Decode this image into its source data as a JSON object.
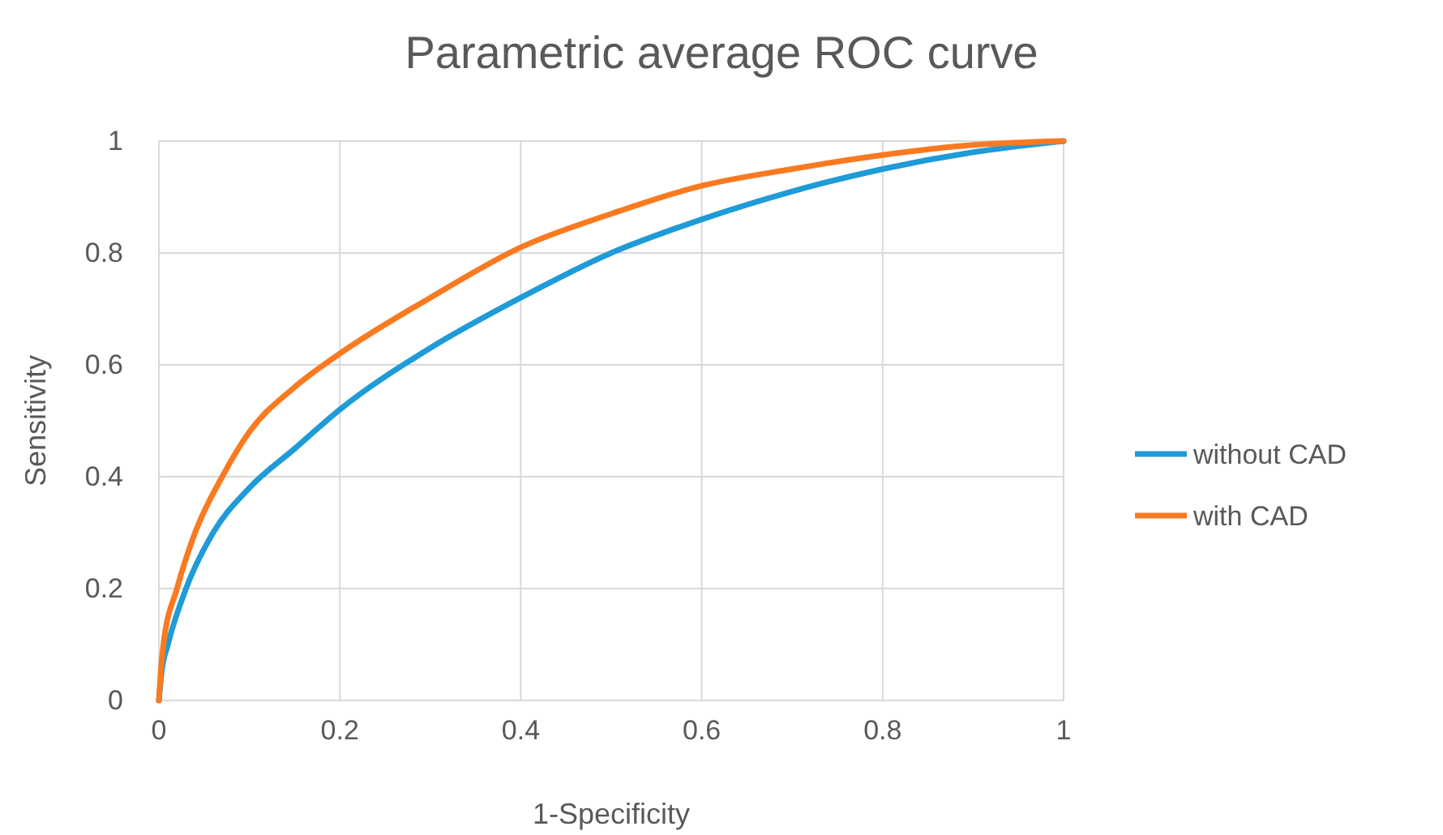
{
  "chart_data": {
    "type": "line",
    "title": "Parametric average ROC curve",
    "xlabel": "1-Specificity",
    "ylabel": "Sensitivity",
    "xlim": [
      0,
      1
    ],
    "xticks": [
      0,
      0.2,
      0.4,
      0.6,
      0.8,
      1
    ],
    "ylim": [
      0,
      1
    ],
    "yticks": [
      0,
      0.2,
      0.4,
      0.6,
      0.8,
      1
    ],
    "grid": true,
    "legend": "right",
    "marker": "none",
    "line_style": "solid",
    "series": [
      {
        "name": "without CAD",
        "color": "#1f9bd7",
        "x": [
          0,
          0.003,
          0.01,
          0.03,
          0.06,
          0.1,
          0.15,
          0.2,
          0.3,
          0.4,
          0.5,
          0.6,
          0.7,
          0.8,
          0.9,
          1
        ],
        "values": [
          0,
          0.05,
          0.1,
          0.2,
          0.3,
          0.38,
          0.45,
          0.52,
          0.63,
          0.72,
          0.8,
          0.86,
          0.91,
          0.95,
          0.98,
          1
        ]
      },
      {
        "name": "with CAD",
        "color": "#f97a20",
        "x": [
          0,
          0.002,
          0.005,
          0.02,
          0.04,
          0.07,
          0.1,
          0.15,
          0.2,
          0.3,
          0.4,
          0.5,
          0.6,
          0.7,
          0.8,
          0.9,
          1
        ],
        "values": [
          0,
          0.05,
          0.1,
          0.2,
          0.3,
          0.4,
          0.48,
          0.56,
          0.62,
          0.72,
          0.81,
          0.87,
          0.92,
          0.95,
          0.975,
          0.993,
          1
        ]
      }
    ]
  }
}
